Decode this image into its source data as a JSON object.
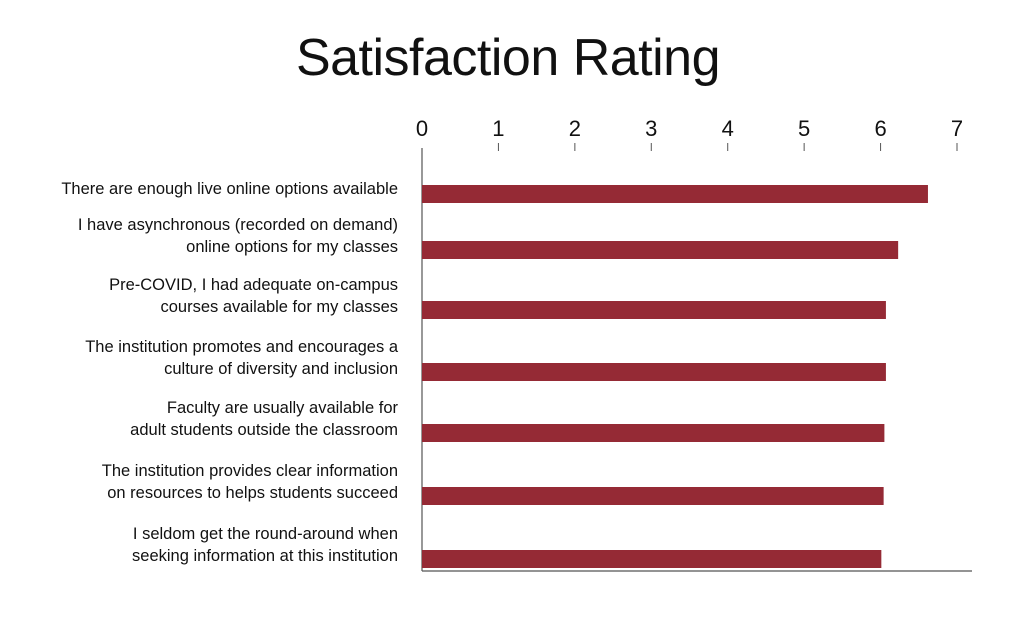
{
  "chart_data": {
    "type": "bar",
    "orientation": "horizontal",
    "title": "Satisfaction Rating",
    "xlim": [
      0,
      7
    ],
    "xticks": [
      "0",
      "1",
      "2",
      "3",
      "4",
      "5",
      "6",
      "7"
    ],
    "x_axis_position": "top",
    "grid": false,
    "bar_color": "#952a35",
    "categories": [
      [
        "There are enough live online options available"
      ],
      [
        "I have asynchronous (recorded on demand)",
        "online options for my classes"
      ],
      [
        "Pre-COVID, I had adequate on-campus",
        "courses available for my classes"
      ],
      [
        "The institution promotes and encourages a",
        "culture of diversity and inclusion"
      ],
      [
        "Faculty are usually available for",
        "adult students outside the classroom"
      ],
      [
        "The institution provides clear information",
        "on resources to helps students succeed"
      ],
      [
        "I seldom get the round-around when",
        "seeking information at this institution"
      ]
    ],
    "values": [
      6.62,
      6.23,
      6.07,
      6.07,
      6.05,
      6.04,
      6.01
    ]
  }
}
